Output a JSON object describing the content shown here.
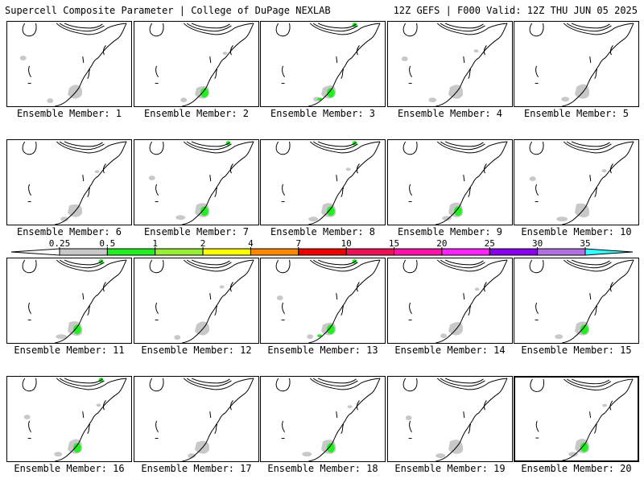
{
  "header": {
    "left": "Supercell Composite Parameter | College of DuPage NEXLAB",
    "right": "12Z GEFS | F000 Valid: 12Z THU JUN 05 2025"
  },
  "colorbar": {
    "ticks": [
      "0.25",
      "0.5",
      "1",
      "2",
      "4",
      "7",
      "10",
      "15",
      "20",
      "25",
      "30",
      "35"
    ],
    "colors": [
      "#c8c8c8",
      "#22ee22",
      "#99ee33",
      "#ffff00",
      "#ff8800",
      "#ee0000",
      "#ee1155",
      "#ff11aa",
      "#ff22ff",
      "#8800ee",
      "#b070e0",
      "#33ffff"
    ]
  },
  "members": [
    {
      "label": "Ensemble Member: 1",
      "green": 0
    },
    {
      "label": "Ensemble Member: 2",
      "green": 1
    },
    {
      "label": "Ensemble Member: 3",
      "green": 3
    },
    {
      "label": "Ensemble Member: 4",
      "green": 0
    },
    {
      "label": "Ensemble Member: 5",
      "green": 0
    },
    {
      "label": "Ensemble Member: 6",
      "green": 0
    },
    {
      "label": "Ensemble Member: 7",
      "green": 2
    },
    {
      "label": "Ensemble Member: 8",
      "green": 2
    },
    {
      "label": "Ensemble Member: 9",
      "green": 1
    },
    {
      "label": "Ensemble Member: 10",
      "green": 0
    },
    {
      "label": "Ensemble Member: 11",
      "green": 2
    },
    {
      "label": "Ensemble Member: 12",
      "green": 0
    },
    {
      "label": "Ensemble Member: 13",
      "green": 3
    },
    {
      "label": "Ensemble Member: 14",
      "green": 0
    },
    {
      "label": "Ensemble Member: 15",
      "green": 1
    },
    {
      "label": "Ensemble Member: 16",
      "green": 2
    },
    {
      "label": "Ensemble Member: 17",
      "green": 0
    },
    {
      "label": "Ensemble Member: 18",
      "green": 1
    },
    {
      "label": "Ensemble Member: 19",
      "green": 0
    },
    {
      "label": "Ensemble Member: 20",
      "green": 1,
      "selected": true
    }
  ]
}
